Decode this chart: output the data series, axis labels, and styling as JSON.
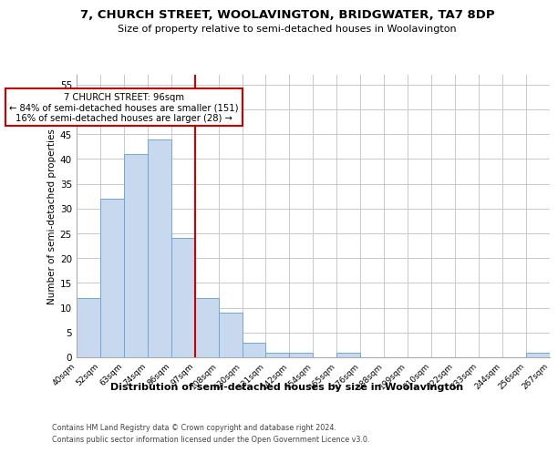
{
  "title1": "7, CHURCH STREET, WOOLAVINGTON, BRIDGWATER, TA7 8DP",
  "title2": "Size of property relative to semi-detached houses in Woolavington",
  "xlabel": "Distribution of semi-detached houses by size in Woolavington",
  "ylabel": "Number of semi-detached properties",
  "bar_values": [
    12,
    32,
    41,
    44,
    24,
    12,
    9,
    3,
    1,
    1,
    0,
    1,
    0,
    0,
    0,
    0,
    0,
    0,
    0,
    1
  ],
  "bin_labels": [
    "40sqm",
    "52sqm",
    "63sqm",
    "74sqm",
    "86sqm",
    "97sqm",
    "108sqm",
    "120sqm",
    "131sqm",
    "142sqm",
    "154sqm",
    "165sqm",
    "176sqm",
    "188sqm",
    "199sqm",
    "210sqm",
    "222sqm",
    "233sqm",
    "244sqm",
    "256sqm",
    "267sqm"
  ],
  "bar_color": "#c8d9ef",
  "bar_edge_color": "#6fa8d5",
  "red_line_index": 5,
  "annotation_title": "7 CHURCH STREET: 96sqm",
  "annotation_line1": "← 84% of semi-detached houses are smaller (151)",
  "annotation_line2": "16% of semi-detached houses are larger (28) →",
  "annotation_box_color": "#ffffff",
  "annotation_box_edge": "#cc0000",
  "ylim": [
    0,
    57
  ],
  "yticks": [
    0,
    5,
    10,
    15,
    20,
    25,
    30,
    35,
    40,
    45,
    50,
    55
  ],
  "footer1": "Contains HM Land Registry data © Crown copyright and database right 2024.",
  "footer2": "Contains public sector information licensed under the Open Government Licence v3.0.",
  "bg_color": "#ffffff",
  "grid_color": "#c8c8d0"
}
